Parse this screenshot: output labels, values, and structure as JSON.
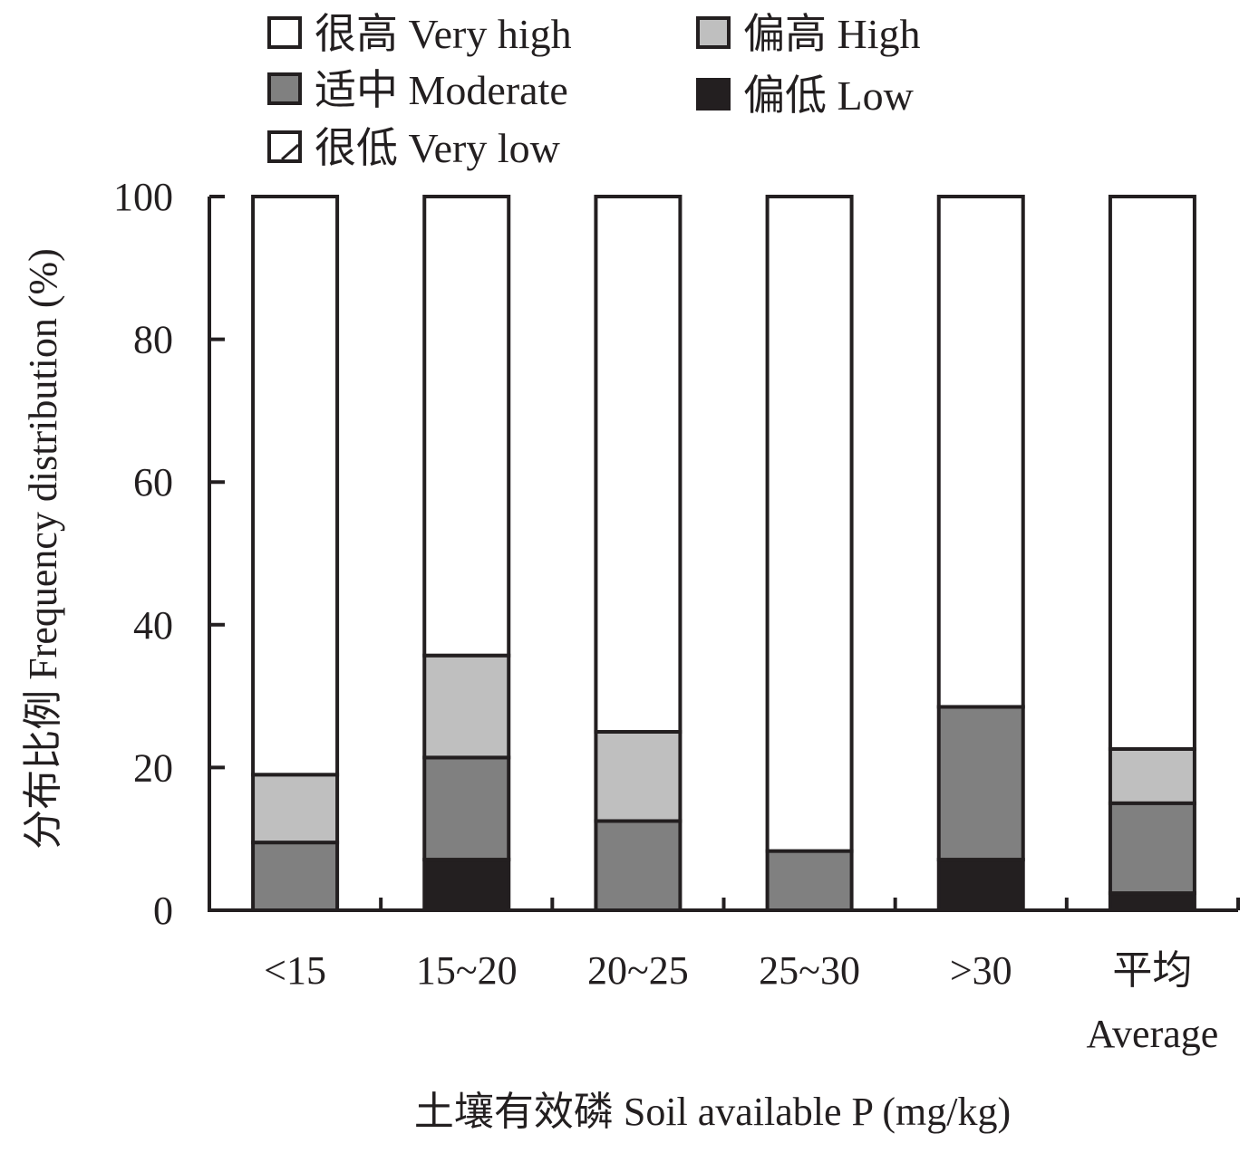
{
  "chart_data": {
    "type": "bar",
    "stacked": true,
    "categories": [
      "<15",
      "15~20",
      "20~25",
      "25~30",
      ">30",
      "平均 Average"
    ],
    "category_lines": [
      [
        "<15"
      ],
      [
        "15~20"
      ],
      [
        "20~25"
      ],
      [
        "25~30"
      ],
      [
        ">30"
      ],
      [
        "平均",
        "Average"
      ]
    ],
    "xlabel": "土壤有效磷 Soil available P (mg/kg)",
    "ylabel": "分布比例 Frequency distribution (%)",
    "ylim": [
      0,
      100
    ],
    "yticks": [
      0,
      20,
      40,
      60,
      80,
      100
    ],
    "grid": false,
    "legend_position": "top",
    "series": [
      {
        "name": "偏低 Low",
        "color": "#231f20",
        "values": [
          0,
          7.1,
          0,
          0,
          7.1,
          2.4
        ]
      },
      {
        "name": "适中 Moderate",
        "color": "#808080",
        "values": [
          9.5,
          14.3,
          12.5,
          8.3,
          21.4,
          12.6
        ]
      },
      {
        "name": "偏高 High",
        "color": "#bfbfbf",
        "values": [
          9.5,
          14.3,
          12.5,
          0,
          0,
          7.6
        ]
      },
      {
        "name": "很高 Very high",
        "color": "#ffffff",
        "values": [
          81.0,
          64.3,
          75.0,
          91.7,
          71.5,
          77.4
        ]
      },
      {
        "name": "很低 Very low",
        "color": "#ffffff",
        "values": [
          0,
          0,
          0,
          0,
          0,
          0
        ]
      }
    ]
  }
}
